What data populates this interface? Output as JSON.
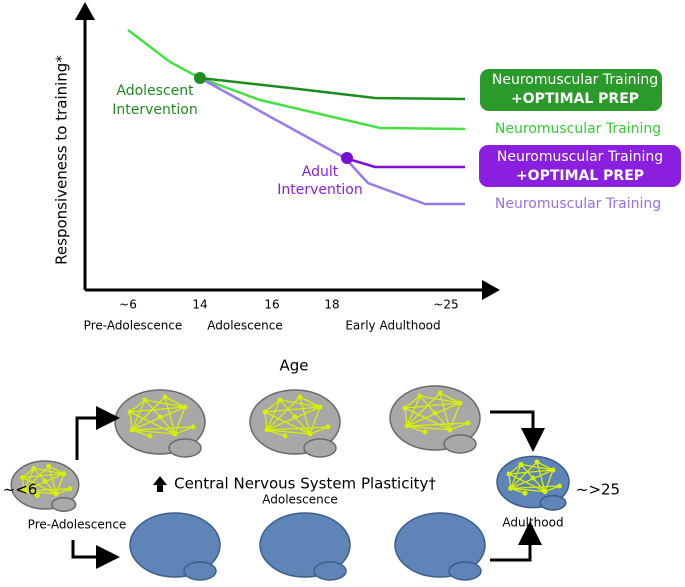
{
  "graph": {
    "y_axis_label": "Responsiveness to training*",
    "x_ticks": [
      "~6",
      "14",
      "16",
      "18",
      "~25"
    ],
    "stages": [
      "Pre-Adolescence",
      "Adolescence",
      "Early Adulthood"
    ],
    "x_axis_label": "Age",
    "adolescent_intervention": [
      "Adolescent",
      "Intervention"
    ],
    "adult_intervention": [
      "Adult",
      "Intervention"
    ],
    "legend": [
      {
        "lines": [
          "Neuromuscular Training",
          "+OPTIMAL PREP"
        ]
      },
      {
        "lines": [
          "Neuromuscular Training"
        ]
      },
      {
        "lines": [
          "Neuromuscular Training",
          "+OPTIMAL PREP"
        ]
      },
      {
        "lines": [
          "Neuromuscular Training"
        ]
      }
    ]
  },
  "brains": {
    "pre_age": "~<6",
    "pre_label": "Pre-Adolescence",
    "plasticity": "Central Nervous System Plasticity†",
    "adolescence": "Adolescence",
    "adult_age": "~>25",
    "adult_label": "Adulthood"
  }
}
